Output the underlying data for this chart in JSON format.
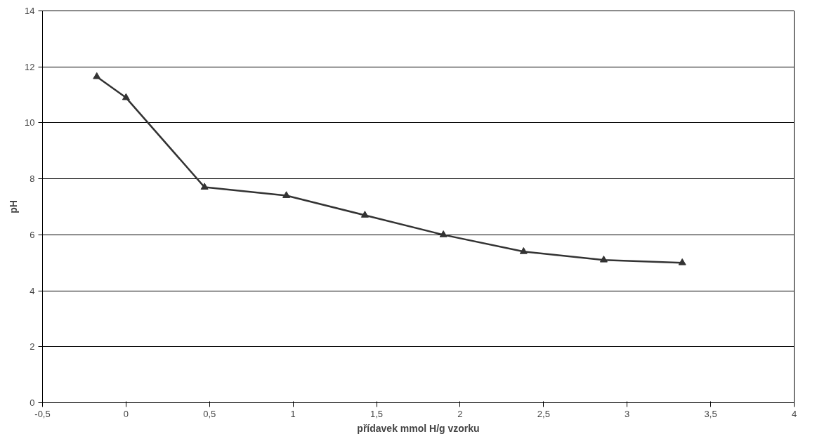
{
  "chart_data": {
    "type": "line",
    "xlabel": "přídavek mmol H/g vzorku",
    "ylabel": "pH",
    "x": [
      -0.175,
      0,
      0.47,
      0.96,
      1.43,
      1.9,
      2.38,
      2.86,
      3.33
    ],
    "series": [
      {
        "color": "#333333",
        "values": [
          11.65,
          10.9,
          7.7,
          7.4,
          6.7,
          6.0,
          5.4,
          5.1,
          5.0
        ]
      }
    ],
    "xlim": [
      -0.5,
      4
    ],
    "ylim": [
      0,
      14
    ],
    "xticks": [
      {
        "value": -0.5,
        "label": "-0,5"
      },
      0,
      {
        "value": 0.5,
        "label": "0,5"
      },
      1,
      {
        "value": 1.5,
        "label": "1,5"
      },
      2,
      {
        "value": 2.5,
        "label": "2,5"
      },
      3,
      {
        "value": 3.5,
        "label": "3,5"
      },
      4
    ],
    "yticks": [
      0,
      2,
      4,
      6,
      8,
      10,
      12,
      14
    ],
    "grid": "y",
    "marker": "triangle",
    "line_style": "solid"
  }
}
